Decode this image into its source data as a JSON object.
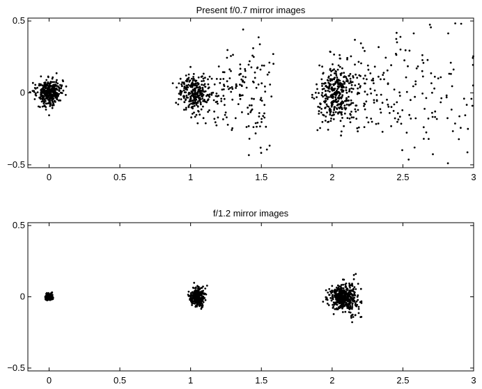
{
  "chart_data": [
    {
      "type": "scatter",
      "title": "Present f/0.7 mirror images",
      "xlabel": "",
      "ylabel": "",
      "xlim": [
        -0.15,
        3.0
      ],
      "ylim": [
        -0.52,
        0.52
      ],
      "grid": false,
      "xticks": [
        "0",
        "0.5",
        "1",
        "1.5",
        "2",
        "2.5",
        "3"
      ],
      "xtick_values": [
        0,
        0.5,
        1,
        1.5,
        2,
        2.5,
        3
      ],
      "yticks": [
        "0.5",
        "0",
        "−0.5"
      ],
      "ytick_values": [
        0.5,
        0,
        -0.5
      ],
      "clusters": [
        {
          "center": [
            0.0,
            0.0
          ],
          "spread_x": 0.05,
          "spread_y": 0.045,
          "tail_x": 0.02,
          "count": 360
        },
        {
          "center": [
            1.02,
            0.0
          ],
          "spread_x": 0.05,
          "spread_y": 0.06,
          "tail_x": 0.55,
          "count": 430
        },
        {
          "center": [
            2.02,
            0.0
          ],
          "spread_x": 0.06,
          "spread_y": 0.1,
          "tail_x": 1.0,
          "count": 560
        }
      ]
    },
    {
      "type": "scatter",
      "title": "f/1.2 mirror images",
      "xlabel": "",
      "ylabel": "",
      "xlim": [
        -0.15,
        3.0
      ],
      "ylim": [
        -0.52,
        0.52
      ],
      "grid": false,
      "xticks": [
        "0",
        "0.5",
        "1",
        "1.5",
        "2",
        "2.5",
        "3"
      ],
      "xtick_values": [
        0,
        0.5,
        1,
        1.5,
        2,
        2.5,
        3
      ],
      "yticks": [
        "0.5",
        "0",
        "−0.5"
      ],
      "ytick_values": [
        0.5,
        0,
        -0.5
      ],
      "clusters": [
        {
          "center": [
            0.0,
            0.0
          ],
          "spread_x": 0.012,
          "spread_y": 0.011,
          "tail_x": 0.0,
          "count": 200
        },
        {
          "center": [
            1.04,
            0.0
          ],
          "spread_x": 0.025,
          "spread_y": 0.028,
          "tail_x": 0.04,
          "count": 320
        },
        {
          "center": [
            2.06,
            0.0
          ],
          "spread_x": 0.04,
          "spread_y": 0.04,
          "tail_x": 0.12,
          "count": 460
        }
      ]
    }
  ]
}
